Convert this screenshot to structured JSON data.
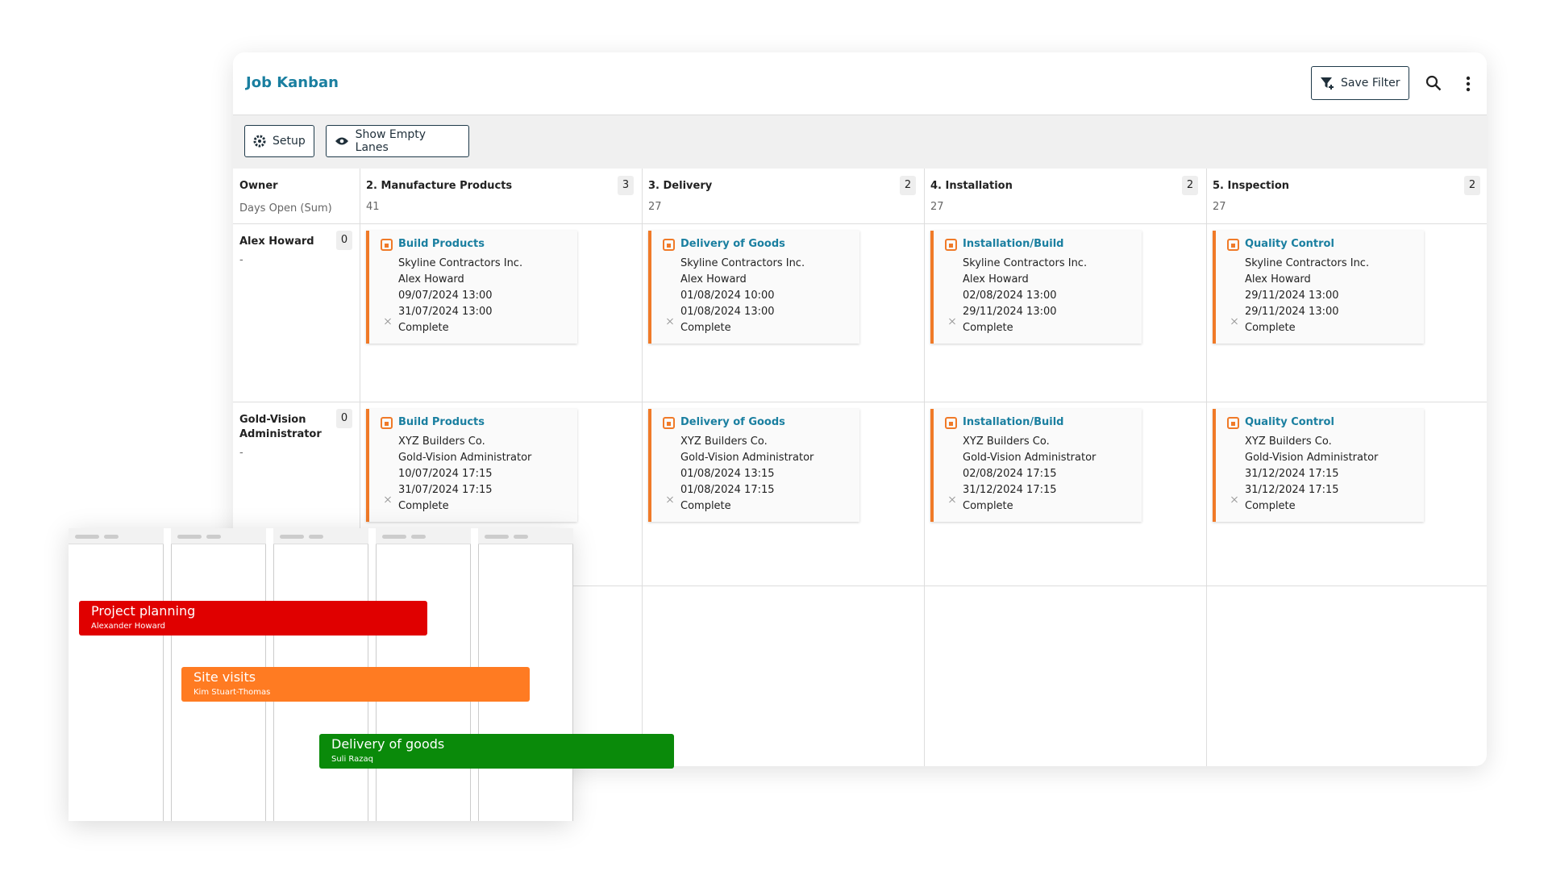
{
  "header": {
    "title": "Job Kanban",
    "save_filter": "Save Filter"
  },
  "toolbar": {
    "setup": "Setup",
    "show_empty_lanes": "Show Empty Lanes"
  },
  "board": {
    "owner_header": "Owner",
    "owner_sub": "Days Open (Sum)",
    "lanes": [
      {
        "name": "2. Manufacture Products",
        "count": "3",
        "sum": "41"
      },
      {
        "name": "3. Delivery",
        "count": "2",
        "sum": "27"
      },
      {
        "name": "4. Installation",
        "count": "2",
        "sum": "27"
      },
      {
        "name": "5. Inspection",
        "count": "2",
        "sum": "27"
      }
    ],
    "rows": [
      {
        "owner": "Alex Howard",
        "count": "0",
        "sum": "-",
        "cards": [
          {
            "title": "Build Products",
            "company": "Skyline Contractors Inc.",
            "person": "Alex Howard",
            "start": "09/07/2024 13:00",
            "end": "31/07/2024 13:00",
            "status": "Complete"
          },
          {
            "title": "Delivery of Goods",
            "company": "Skyline Contractors Inc.",
            "person": "Alex Howard",
            "start": "01/08/2024 10:00",
            "end": "01/08/2024 13:00",
            "status": "Complete"
          },
          {
            "title": "Installation/Build",
            "company": "Skyline Contractors Inc.",
            "person": "Alex Howard",
            "start": "02/08/2024 13:00",
            "end": "29/11/2024 13:00",
            "status": "Complete"
          },
          {
            "title": "Quality Control",
            "company": "Skyline Contractors Inc.",
            "person": "Alex Howard",
            "start": "29/11/2024 13:00",
            "end": "29/11/2024 13:00",
            "status": "Complete"
          }
        ]
      },
      {
        "owner": "Gold-Vision Administrator",
        "count": "0",
        "sum": "-",
        "cards": [
          {
            "title": "Build Products",
            "company": "XYZ Builders Co.",
            "person": "Gold-Vision Administrator",
            "start": "10/07/2024 17:15",
            "end": "31/07/2024 17:15",
            "status": "Complete"
          },
          {
            "title": "Delivery of Goods",
            "company": "XYZ Builders Co.",
            "person": "Gold-Vision Administrator",
            "start": "01/08/2024 13:15",
            "end": "01/08/2024 17:15",
            "status": "Complete"
          },
          {
            "title": "Installation/Build",
            "company": "XYZ Builders Co.",
            "person": "Gold-Vision Administrator",
            "start": "02/08/2024 17:15",
            "end": "31/12/2024 17:15",
            "status": "Complete"
          },
          {
            "title": "Quality Control",
            "company": "XYZ Builders Co.",
            "person": "Gold-Vision Administrator",
            "start": "31/12/2024 17:15",
            "end": "31/12/2024 17:15",
            "status": "Complete"
          }
        ]
      }
    ]
  },
  "gantt": {
    "bars": [
      {
        "title": "Project planning",
        "person": "Alexander Howard",
        "color": "#e00000"
      },
      {
        "title": "Site visits",
        "person": "Kim Stuart-Thomas",
        "color": "#ff7b22"
      },
      {
        "title": "Delivery of goods",
        "person": "Suli Razaq",
        "color": "#0a8a0a"
      }
    ]
  }
}
